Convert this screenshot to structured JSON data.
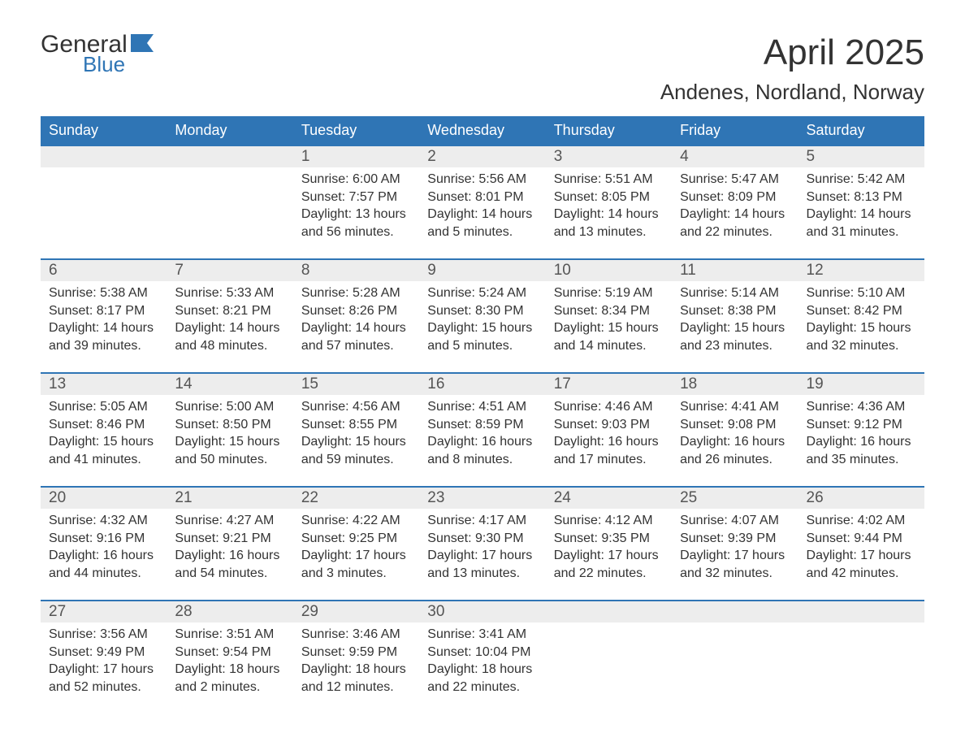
{
  "colors": {
    "header_bg": "#2f75b5",
    "daynum_bg": "#ededed",
    "week_border": "#2f75b5",
    "logo_blue": "#2f75b5",
    "logo_dark": "#333333",
    "text": "#333333"
  },
  "logo": {
    "line1": "General",
    "line2": "Blue"
  },
  "title": "April 2025",
  "subtitle": "Andenes, Nordland, Norway",
  "weekdays": [
    "Sunday",
    "Monday",
    "Tuesday",
    "Wednesday",
    "Thursday",
    "Friday",
    "Saturday"
  ],
  "weeks": [
    [
      {
        "n": "",
        "sunrise": "",
        "sunset": "",
        "daylight1": "",
        "daylight2": ""
      },
      {
        "n": "",
        "sunrise": "",
        "sunset": "",
        "daylight1": "",
        "daylight2": ""
      },
      {
        "n": "1",
        "sunrise": "Sunrise: 6:00 AM",
        "sunset": "Sunset: 7:57 PM",
        "daylight1": "Daylight: 13 hours",
        "daylight2": "and 56 minutes."
      },
      {
        "n": "2",
        "sunrise": "Sunrise: 5:56 AM",
        "sunset": "Sunset: 8:01 PM",
        "daylight1": "Daylight: 14 hours",
        "daylight2": "and 5 minutes."
      },
      {
        "n": "3",
        "sunrise": "Sunrise: 5:51 AM",
        "sunset": "Sunset: 8:05 PM",
        "daylight1": "Daylight: 14 hours",
        "daylight2": "and 13 minutes."
      },
      {
        "n": "4",
        "sunrise": "Sunrise: 5:47 AM",
        "sunset": "Sunset: 8:09 PM",
        "daylight1": "Daylight: 14 hours",
        "daylight2": "and 22 minutes."
      },
      {
        "n": "5",
        "sunrise": "Sunrise: 5:42 AM",
        "sunset": "Sunset: 8:13 PM",
        "daylight1": "Daylight: 14 hours",
        "daylight2": "and 31 minutes."
      }
    ],
    [
      {
        "n": "6",
        "sunrise": "Sunrise: 5:38 AM",
        "sunset": "Sunset: 8:17 PM",
        "daylight1": "Daylight: 14 hours",
        "daylight2": "and 39 minutes."
      },
      {
        "n": "7",
        "sunrise": "Sunrise: 5:33 AM",
        "sunset": "Sunset: 8:21 PM",
        "daylight1": "Daylight: 14 hours",
        "daylight2": "and 48 minutes."
      },
      {
        "n": "8",
        "sunrise": "Sunrise: 5:28 AM",
        "sunset": "Sunset: 8:26 PM",
        "daylight1": "Daylight: 14 hours",
        "daylight2": "and 57 minutes."
      },
      {
        "n": "9",
        "sunrise": "Sunrise: 5:24 AM",
        "sunset": "Sunset: 8:30 PM",
        "daylight1": "Daylight: 15 hours",
        "daylight2": "and 5 minutes."
      },
      {
        "n": "10",
        "sunrise": "Sunrise: 5:19 AM",
        "sunset": "Sunset: 8:34 PM",
        "daylight1": "Daylight: 15 hours",
        "daylight2": "and 14 minutes."
      },
      {
        "n": "11",
        "sunrise": "Sunrise: 5:14 AM",
        "sunset": "Sunset: 8:38 PM",
        "daylight1": "Daylight: 15 hours",
        "daylight2": "and 23 minutes."
      },
      {
        "n": "12",
        "sunrise": "Sunrise: 5:10 AM",
        "sunset": "Sunset: 8:42 PM",
        "daylight1": "Daylight: 15 hours",
        "daylight2": "and 32 minutes."
      }
    ],
    [
      {
        "n": "13",
        "sunrise": "Sunrise: 5:05 AM",
        "sunset": "Sunset: 8:46 PM",
        "daylight1": "Daylight: 15 hours",
        "daylight2": "and 41 minutes."
      },
      {
        "n": "14",
        "sunrise": "Sunrise: 5:00 AM",
        "sunset": "Sunset: 8:50 PM",
        "daylight1": "Daylight: 15 hours",
        "daylight2": "and 50 minutes."
      },
      {
        "n": "15",
        "sunrise": "Sunrise: 4:56 AM",
        "sunset": "Sunset: 8:55 PM",
        "daylight1": "Daylight: 15 hours",
        "daylight2": "and 59 minutes."
      },
      {
        "n": "16",
        "sunrise": "Sunrise: 4:51 AM",
        "sunset": "Sunset: 8:59 PM",
        "daylight1": "Daylight: 16 hours",
        "daylight2": "and 8 minutes."
      },
      {
        "n": "17",
        "sunrise": "Sunrise: 4:46 AM",
        "sunset": "Sunset: 9:03 PM",
        "daylight1": "Daylight: 16 hours",
        "daylight2": "and 17 minutes."
      },
      {
        "n": "18",
        "sunrise": "Sunrise: 4:41 AM",
        "sunset": "Sunset: 9:08 PM",
        "daylight1": "Daylight: 16 hours",
        "daylight2": "and 26 minutes."
      },
      {
        "n": "19",
        "sunrise": "Sunrise: 4:36 AM",
        "sunset": "Sunset: 9:12 PM",
        "daylight1": "Daylight: 16 hours",
        "daylight2": "and 35 minutes."
      }
    ],
    [
      {
        "n": "20",
        "sunrise": "Sunrise: 4:32 AM",
        "sunset": "Sunset: 9:16 PM",
        "daylight1": "Daylight: 16 hours",
        "daylight2": "and 44 minutes."
      },
      {
        "n": "21",
        "sunrise": "Sunrise: 4:27 AM",
        "sunset": "Sunset: 9:21 PM",
        "daylight1": "Daylight: 16 hours",
        "daylight2": "and 54 minutes."
      },
      {
        "n": "22",
        "sunrise": "Sunrise: 4:22 AM",
        "sunset": "Sunset: 9:25 PM",
        "daylight1": "Daylight: 17 hours",
        "daylight2": "and 3 minutes."
      },
      {
        "n": "23",
        "sunrise": "Sunrise: 4:17 AM",
        "sunset": "Sunset: 9:30 PM",
        "daylight1": "Daylight: 17 hours",
        "daylight2": "and 13 minutes."
      },
      {
        "n": "24",
        "sunrise": "Sunrise: 4:12 AM",
        "sunset": "Sunset: 9:35 PM",
        "daylight1": "Daylight: 17 hours",
        "daylight2": "and 22 minutes."
      },
      {
        "n": "25",
        "sunrise": "Sunrise: 4:07 AM",
        "sunset": "Sunset: 9:39 PM",
        "daylight1": "Daylight: 17 hours",
        "daylight2": "and 32 minutes."
      },
      {
        "n": "26",
        "sunrise": "Sunrise: 4:02 AM",
        "sunset": "Sunset: 9:44 PM",
        "daylight1": "Daylight: 17 hours",
        "daylight2": "and 42 minutes."
      }
    ],
    [
      {
        "n": "27",
        "sunrise": "Sunrise: 3:56 AM",
        "sunset": "Sunset: 9:49 PM",
        "daylight1": "Daylight: 17 hours",
        "daylight2": "and 52 minutes."
      },
      {
        "n": "28",
        "sunrise": "Sunrise: 3:51 AM",
        "sunset": "Sunset: 9:54 PM",
        "daylight1": "Daylight: 18 hours",
        "daylight2": "and 2 minutes."
      },
      {
        "n": "29",
        "sunrise": "Sunrise: 3:46 AM",
        "sunset": "Sunset: 9:59 PM",
        "daylight1": "Daylight: 18 hours",
        "daylight2": "and 12 minutes."
      },
      {
        "n": "30",
        "sunrise": "Sunrise: 3:41 AM",
        "sunset": "Sunset: 10:04 PM",
        "daylight1": "Daylight: 18 hours",
        "daylight2": "and 22 minutes."
      },
      {
        "n": "",
        "sunrise": "",
        "sunset": "",
        "daylight1": "",
        "daylight2": ""
      },
      {
        "n": "",
        "sunrise": "",
        "sunset": "",
        "daylight1": "",
        "daylight2": ""
      },
      {
        "n": "",
        "sunrise": "",
        "sunset": "",
        "daylight1": "",
        "daylight2": ""
      }
    ]
  ]
}
